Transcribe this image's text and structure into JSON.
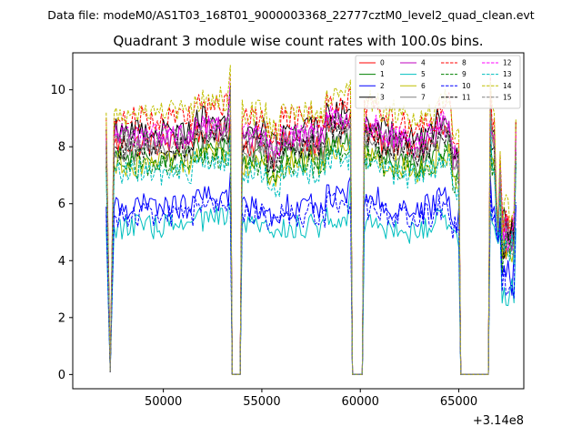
{
  "header": {
    "data_file_label": "Data file: modeM0/AS1T03_168T01_9000003368_22777cztM0_level2_quad_clean.evt"
  },
  "chart_data": {
    "type": "line",
    "title": "Quadrant 3 module wise count rates with 100.0s bins.",
    "xlabel": "",
    "ylabel": "",
    "xlim": [
      45400,
      68300
    ],
    "ylim": [
      -0.5,
      11.3
    ],
    "x_offset_label": "+3.14e8",
    "x_ticks": [
      50000,
      55000,
      60000,
      65000
    ],
    "x_tick_labels": [
      "50000",
      "55000",
      "60000",
      "65000"
    ],
    "y_ticks": [
      0,
      2,
      4,
      6,
      8,
      10
    ],
    "y_tick_labels": [
      "0",
      "2",
      "4",
      "6",
      "8",
      "10"
    ],
    "grid": false,
    "legend": {
      "placement": "top-right",
      "ncol": 4
    },
    "segments": [
      {
        "start": 47100,
        "end": 53500
      },
      {
        "start": 53900,
        "end": 59600
      },
      {
        "start": 60100,
        "end": 65100
      },
      {
        "start": 66500,
        "end": 67900
      }
    ],
    "events": [
      {
        "from": 47100,
        "to": 47500,
        "shape": "v",
        "low": 0.1
      },
      {
        "from": 53500,
        "to": 53900,
        "shape": "box"
      },
      {
        "from": 59600,
        "to": 60100,
        "shape": "box"
      },
      {
        "from": 65100,
        "to": 66500,
        "shape": "box"
      },
      {
        "from": 66800,
        "to": 67150,
        "shape": "v",
        "low": 4.5
      }
    ],
    "series": [
      {
        "name": "0",
        "color": "#ff0000",
        "dash": "solid",
        "level": 8.1
      },
      {
        "name": "1",
        "color": "#008000",
        "dash": "solid",
        "level": 7.6
      },
      {
        "name": "2",
        "color": "#0000ff",
        "dash": "solid",
        "level": 5.9
      },
      {
        "name": "3",
        "color": "#000000",
        "dash": "solid",
        "level": 8.6
      },
      {
        "name": "4",
        "color": "#bf00bf",
        "dash": "solid",
        "level": 8.3
      },
      {
        "name": "5",
        "color": "#00bfbf",
        "dash": "solid",
        "level": 5.2
      },
      {
        "name": "6",
        "color": "#bfbf00",
        "dash": "solid",
        "level": 7.4
      },
      {
        "name": "7",
        "color": "#808080",
        "dash": "solid",
        "level": 7.9
      },
      {
        "name": "8",
        "color": "#ff0000",
        "dash": "dashed",
        "level": 9.0
      },
      {
        "name": "9",
        "color": "#008000",
        "dash": "dashed",
        "level": 7.3
      },
      {
        "name": "10",
        "color": "#0000ff",
        "dash": "dashed",
        "level": 5.6
      },
      {
        "name": "11",
        "color": "#000000",
        "dash": "dashed",
        "level": 8.0
      },
      {
        "name": "12",
        "color": "#ff00ff",
        "dash": "dashed",
        "level": 8.4
      },
      {
        "name": "13",
        "color": "#00bfbf",
        "dash": "dashed",
        "level": 7.1
      },
      {
        "name": "14",
        "color": "#bfbf00",
        "dash": "dashed",
        "level": 9.2
      },
      {
        "name": "15",
        "color": "#808080",
        "dash": "dashed",
        "level": 8.2
      }
    ]
  }
}
